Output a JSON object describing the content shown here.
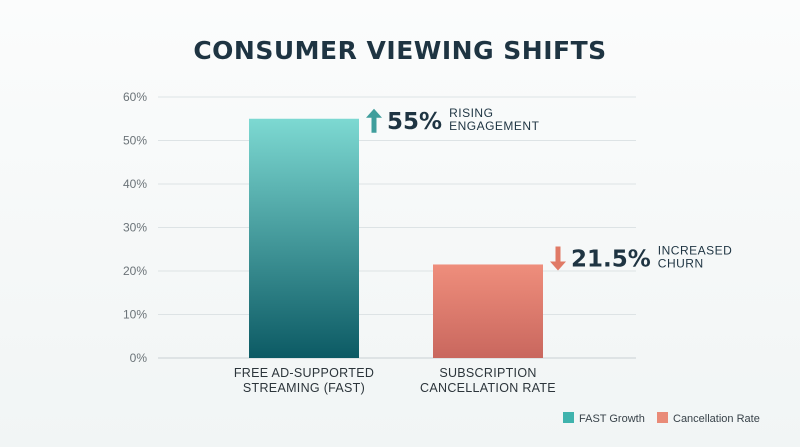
{
  "chart_data": {
    "type": "bar",
    "title": "CONSUMER VIEWING SHIFTS",
    "categories": [
      [
        "FREE AD-SUPPORTED",
        "STREAMING (FAST)"
      ],
      [
        "SUBSCRIPTION",
        "CANCELLATION RATE"
      ]
    ],
    "values": [
      55,
      21.5
    ],
    "ylim": [
      0,
      60
    ],
    "yticks": [
      0,
      10,
      20,
      30,
      40,
      50,
      60
    ],
    "ytick_labels": [
      "0%",
      "10%",
      "20%",
      "30%",
      "40%",
      "50%",
      "60%"
    ],
    "grid": true,
    "annotations": [
      {
        "arrow": "up",
        "value": "55%",
        "label": [
          "RISING",
          "ENGAGEMENT"
        ]
      },
      {
        "arrow": "down",
        "value": "21.5%",
        "label": [
          "INCREASED",
          "CHURN"
        ]
      }
    ],
    "legend": {
      "placement": "bottom-right",
      "entries": [
        {
          "name": "FAST Growth",
          "color": "#3fb3ad"
        },
        {
          "name": "Cancellation Rate",
          "color": "#e98b78"
        }
      ]
    },
    "colors": {
      "bar1_top": "#7dd9d2",
      "bar1_bottom": "#0c5a64",
      "bar2_top": "#ef8e7c",
      "bar2_bottom": "#c9675e",
      "arrow_up": "#3f9e9c",
      "arrow_down": "#e07a66",
      "title": "#1e3442"
    }
  }
}
